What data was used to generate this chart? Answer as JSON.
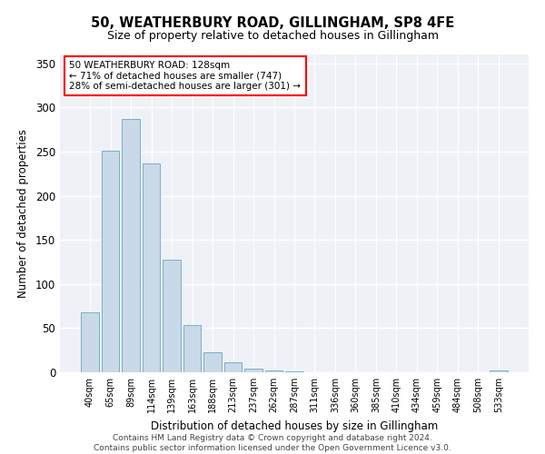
{
  "title": "50, WEATHERBURY ROAD, GILLINGHAM, SP8 4FE",
  "subtitle": "Size of property relative to detached houses in Gillingham",
  "xlabel": "Distribution of detached houses by size in Gillingham",
  "ylabel": "Number of detached properties",
  "bar_color": "#c9d9e8",
  "bar_edge_color": "#7aaec8",
  "background_color": "#eef2f7",
  "grid_color": "#ffffff",
  "categories": [
    "40sqm",
    "65sqm",
    "89sqm",
    "114sqm",
    "139sqm",
    "163sqm",
    "188sqm",
    "213sqm",
    "237sqm",
    "262sqm",
    "287sqm",
    "311sqm",
    "336sqm",
    "360sqm",
    "385sqm",
    "410sqm",
    "434sqm",
    "459sqm",
    "484sqm",
    "508sqm",
    "533sqm"
  ],
  "values": [
    68,
    251,
    287,
    237,
    128,
    53,
    23,
    11,
    4,
    2,
    1,
    0,
    0,
    0,
    0,
    0,
    0,
    0,
    0,
    0,
    2
  ],
  "ylim": [
    0,
    360
  ],
  "yticks": [
    0,
    50,
    100,
    150,
    200,
    250,
    300,
    350
  ],
  "annotation_line1": "50 WEATHERBURY ROAD: 128sqm",
  "annotation_line2": "← 71% of detached houses are smaller (747)",
  "annotation_line3": "28% of semi-detached houses are larger (301) →",
  "footer_line1": "Contains HM Land Registry data © Crown copyright and database right 2024.",
  "footer_line2": "Contains public sector information licensed under the Open Government Licence v3.0."
}
